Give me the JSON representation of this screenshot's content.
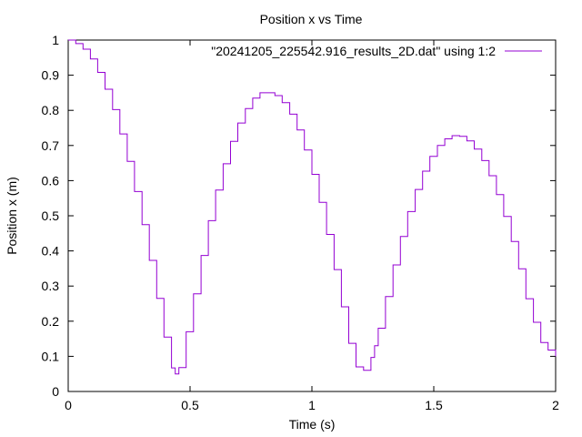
{
  "chart_data": {
    "type": "line",
    "title": "Position x vs Time",
    "xlabel": "Time (s)",
    "ylabel": "Position x (m)",
    "xlim": [
      0,
      2
    ],
    "ylim": [
      0,
      1
    ],
    "xticks": [
      0,
      0.5,
      1,
      1.5,
      2
    ],
    "xtick_labels": [
      "0",
      "0.5",
      "1",
      "1.5",
      "2"
    ],
    "yticks": [
      0,
      0.1,
      0.2,
      0.3,
      0.4,
      0.5,
      0.6,
      0.7,
      0.8,
      0.9,
      1
    ],
    "ytick_labels": [
      "0",
      "0.1",
      "0.2",
      "0.3",
      "0.4",
      "0.5",
      "0.6",
      "0.7",
      "0.8",
      "0.9",
      "1"
    ],
    "grid": false,
    "legend_position": "top-right",
    "step_plot": true,
    "series": [
      {
        "name": "\"20241205_225542.916_results_2D.dat\" using 1:2",
        "color": "#9400d3",
        "x": [
          0.0,
          0.031,
          0.061,
          0.091,
          0.121,
          0.151,
          0.182,
          0.212,
          0.242,
          0.272,
          0.303,
          0.333,
          0.363,
          0.393,
          0.424,
          0.439,
          0.454,
          0.484,
          0.514,
          0.545,
          0.575,
          0.605,
          0.636,
          0.666,
          0.696,
          0.727,
          0.757,
          0.787,
          0.818,
          0.848,
          0.878,
          0.909,
          0.939,
          0.969,
          1.0,
          1.03,
          1.06,
          1.091,
          1.121,
          1.151,
          1.181,
          1.212,
          1.242,
          1.257,
          1.272,
          1.302,
          1.333,
          1.363,
          1.393,
          1.424,
          1.454,
          1.484,
          1.515,
          1.545,
          1.575,
          1.606,
          1.636,
          1.666,
          1.697,
          1.727,
          1.757,
          1.787,
          1.818,
          1.848,
          1.878,
          1.909,
          1.939,
          1.969,
          2.0
        ],
        "y": [
          1.0,
          0.99,
          0.974,
          0.946,
          0.908,
          0.86,
          0.802,
          0.733,
          0.655,
          0.569,
          0.475,
          0.373,
          0.265,
          0.155,
          0.067,
          0.05,
          0.068,
          0.17,
          0.278,
          0.387,
          0.486,
          0.573,
          0.648,
          0.712,
          0.764,
          0.805,
          0.835,
          0.85,
          0.85,
          0.842,
          0.822,
          0.789,
          0.744,
          0.687,
          0.618,
          0.538,
          0.447,
          0.347,
          0.241,
          0.137,
          0.07,
          0.06,
          0.097,
          0.13,
          0.18,
          0.27,
          0.36,
          0.441,
          0.512,
          0.575,
          0.627,
          0.669,
          0.7,
          0.719,
          0.728,
          0.726,
          0.713,
          0.69,
          0.657,
          0.614,
          0.56,
          0.498,
          0.427,
          0.349,
          0.264,
          0.197,
          0.139,
          0.118,
          0.1
        ]
      }
    ]
  }
}
